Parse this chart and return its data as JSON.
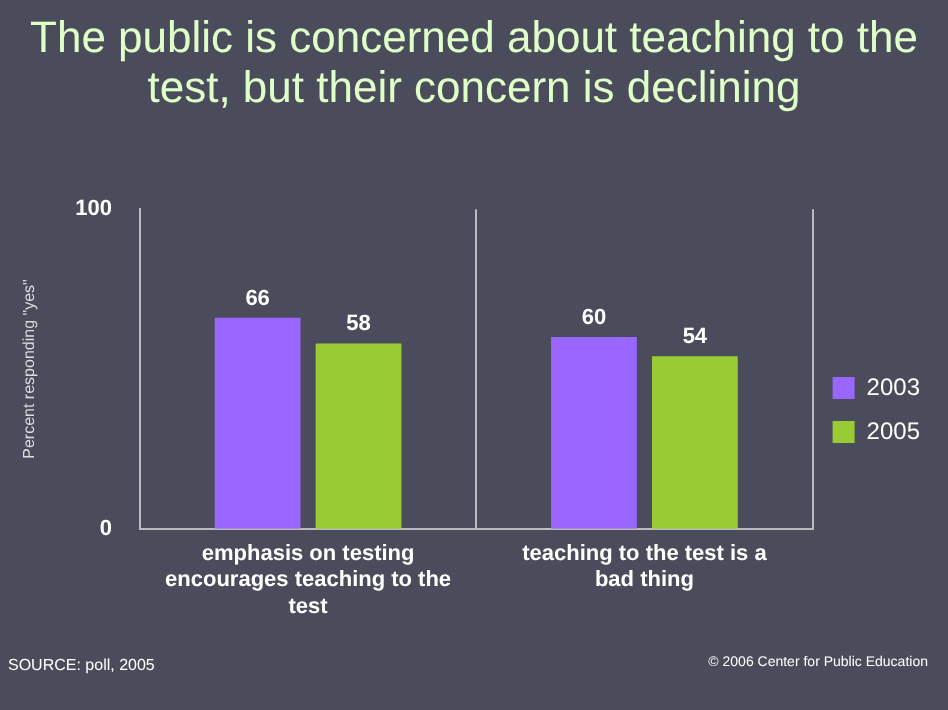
{
  "chart_data": {
    "type": "bar",
    "title": "The public is concerned about teaching to the test, but their concern is declining",
    "ylabel": "Percent responding \"yes\"",
    "categories": [
      "emphasis on testing encourages teaching to the test",
      "teaching to the test is a bad thing"
    ],
    "series": [
      {
        "name": "2003",
        "color": "#9966ff",
        "values": [
          66,
          60
        ]
      },
      {
        "name": "2005",
        "color": "#99cc33",
        "values": [
          58,
          54
        ]
      }
    ],
    "ylim": [
      0,
      100
    ],
    "yticks": [
      0,
      100
    ],
    "grid": "x",
    "legend": "right",
    "data_labels": true,
    "annotations": [
      "SOURCE: poll, 2005",
      "© 2006 Center for Public Education"
    ]
  }
}
